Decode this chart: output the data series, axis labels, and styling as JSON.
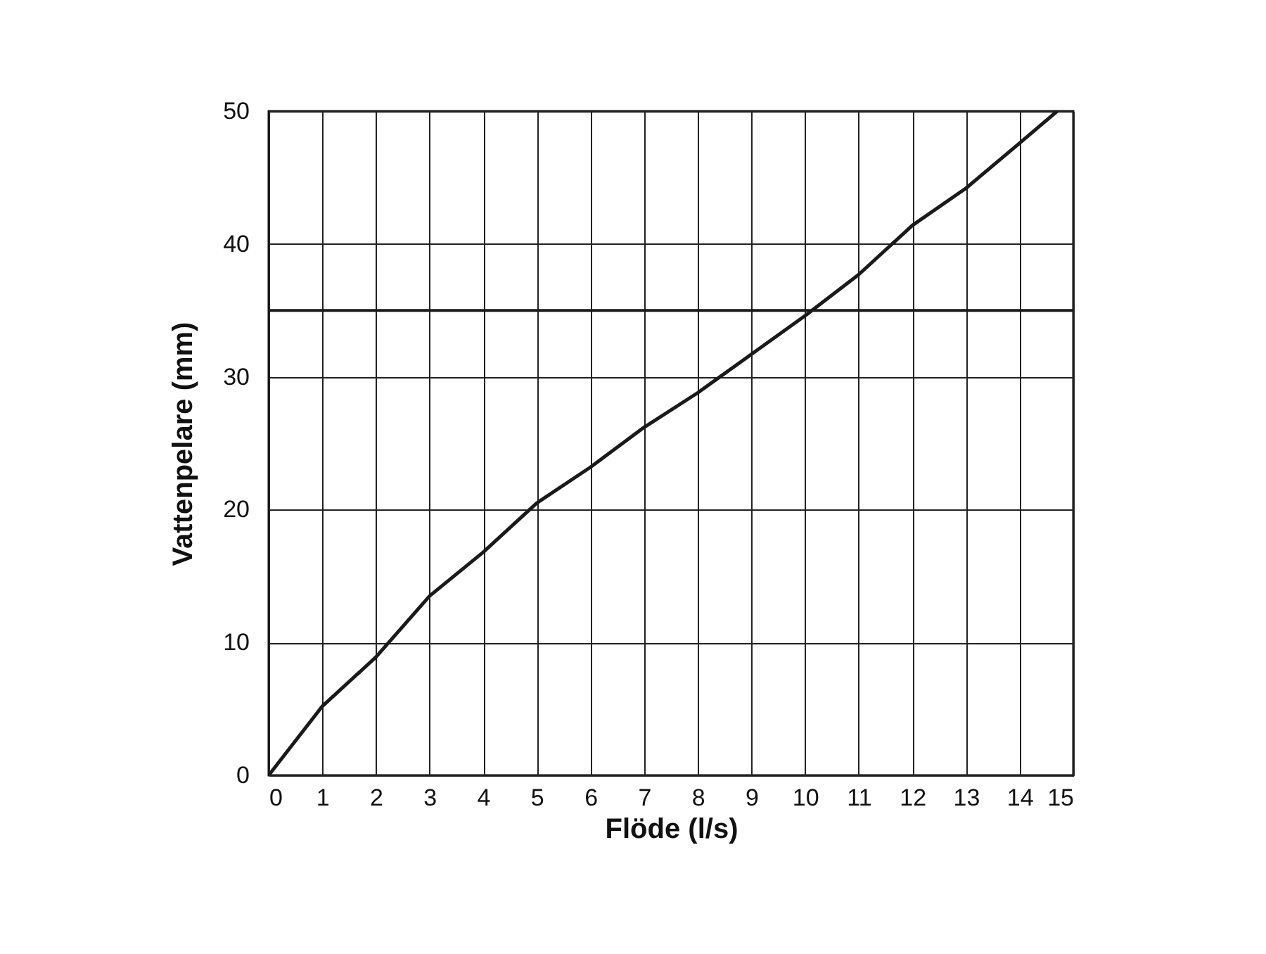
{
  "chart_data": {
    "type": "line",
    "xlabel": "Flöde (l/s)",
    "ylabel": "Vattenpelare (mm)",
    "x": [
      0,
      1,
      2,
      3,
      4,
      5,
      6,
      7,
      8,
      9,
      10,
      11,
      12,
      13,
      14,
      14.7
    ],
    "series": [
      {
        "color": "#1a1a1a",
        "values": [
          0,
          5.2,
          8.9,
          13.5,
          16.8,
          20.5,
          23.2,
          26.2,
          28.8,
          31.7,
          34.6,
          37.7,
          41.4,
          44.2,
          47.6,
          50
        ]
      }
    ],
    "xlim": [
      0,
      15
    ],
    "xticks": [
      0,
      1,
      2,
      3,
      4,
      5,
      6,
      7,
      8,
      9,
      10,
      11,
      12,
      13,
      14,
      15
    ],
    "ylim": [
      0,
      50
    ],
    "yticks": [
      0,
      10,
      20,
      30,
      40,
      50
    ],
    "ref_lines": [
      {
        "axis": "y",
        "value": 35,
        "color": "#1a1a1a"
      }
    ],
    "grid": true,
    "marker": "none",
    "line_style": "solid"
  }
}
